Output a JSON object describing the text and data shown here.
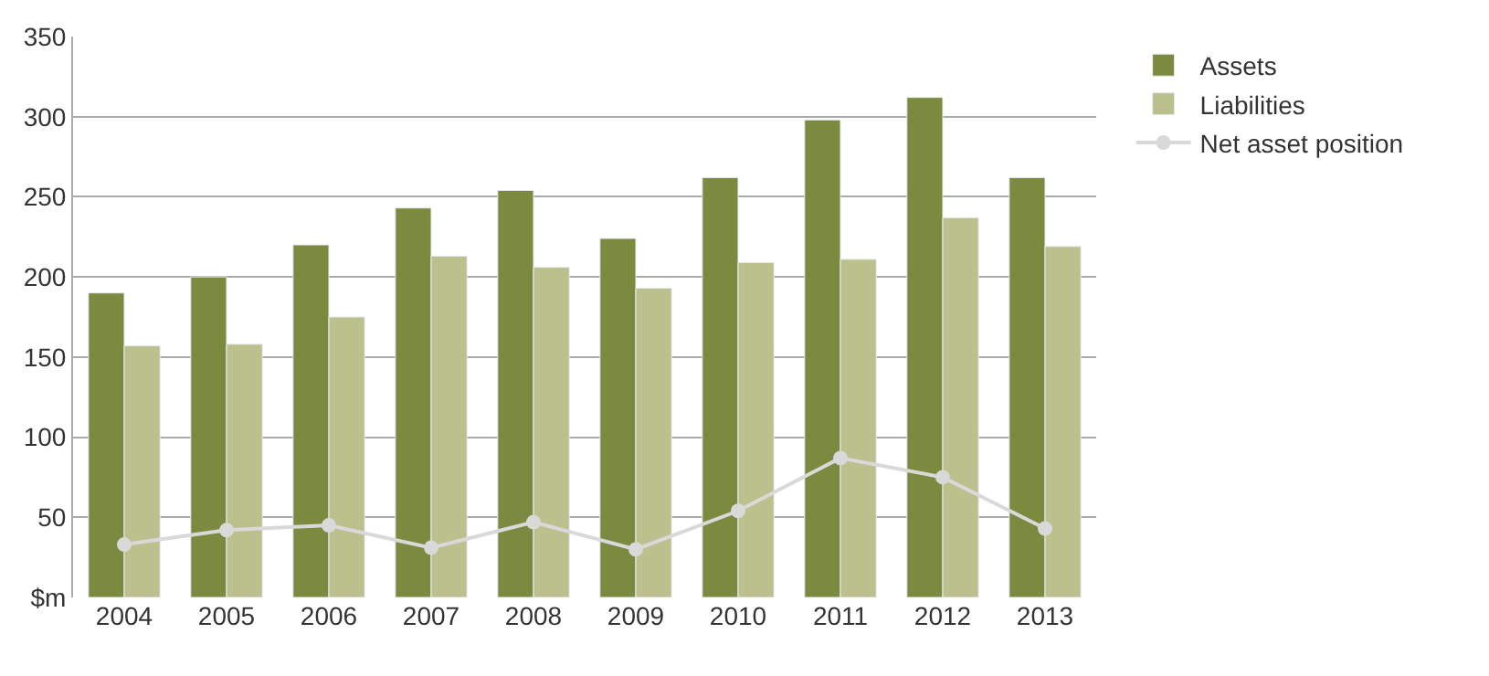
{
  "chart_data": {
    "type": "bar",
    "categories": [
      "2004",
      "2005",
      "2006",
      "2007",
      "2008",
      "2009",
      "2010",
      "2011",
      "2012",
      "2013"
    ],
    "series": [
      {
        "name": "Assets",
        "color": "#7b8a3e",
        "values": [
          190,
          200,
          220,
          243,
          254,
          224,
          262,
          298,
          312,
          262
        ]
      },
      {
        "name": "Liabilities",
        "color": "#bcc08d",
        "values": [
          157,
          158,
          175,
          213,
          206,
          193,
          209,
          211,
          237,
          219
        ]
      },
      {
        "name": "Net asset position",
        "type": "line",
        "color": "#d9d9d9",
        "marker": "circle",
        "values": [
          33,
          42,
          45,
          31,
          47,
          30,
          54,
          87,
          75,
          43
        ]
      }
    ],
    "ylim": [
      0,
      350
    ],
    "yticks": [
      {
        "value": 0,
        "label": "$m"
      },
      50,
      100,
      150,
      200,
      250,
      300,
      350
    ],
    "grid": "y",
    "legend": "top right"
  }
}
